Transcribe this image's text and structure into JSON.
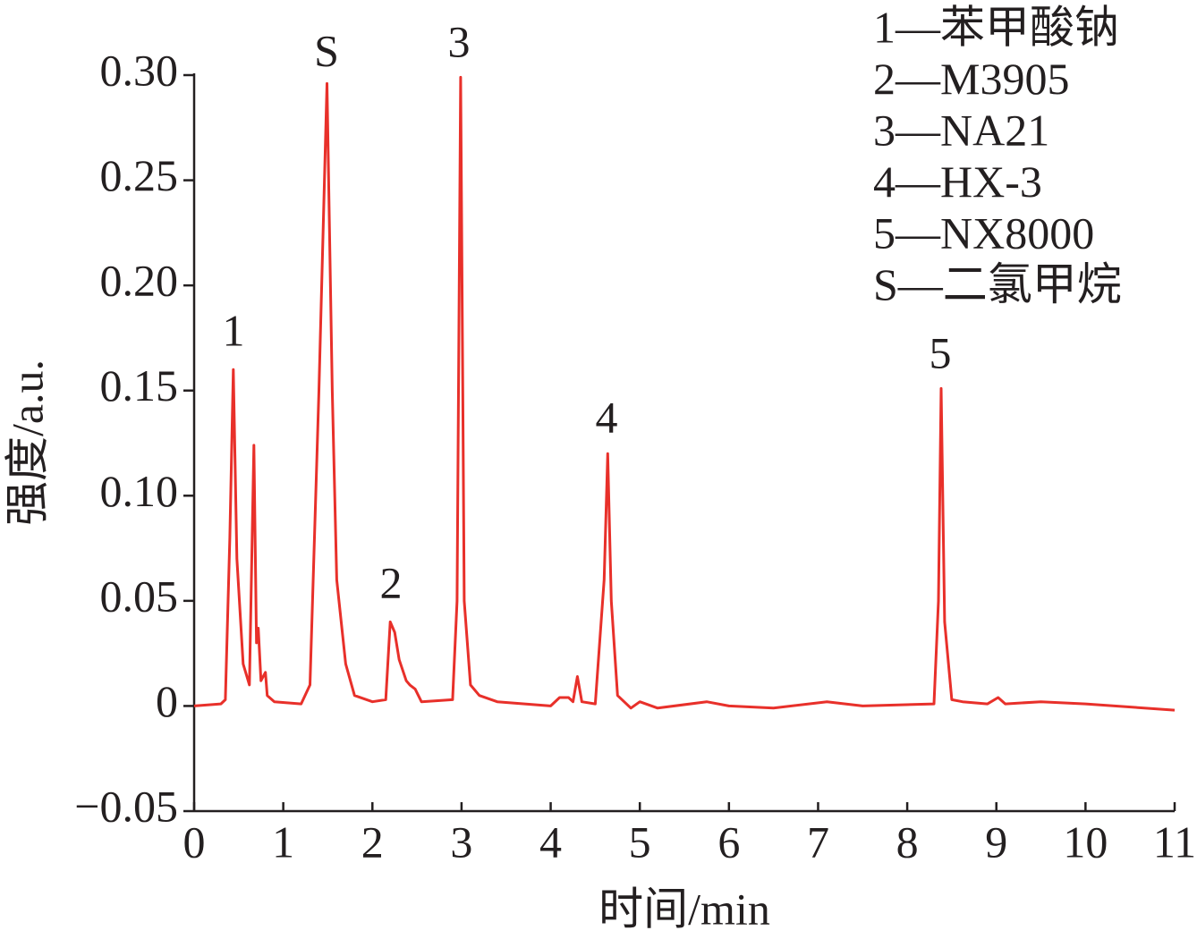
{
  "chart_data": {
    "type": "line",
    "xlabel": "时间/min",
    "ylabel": "强度/a.u.",
    "x": [
      0,
      0.3,
      0.35,
      0.4,
      0.44,
      0.48,
      0.55,
      0.62,
      0.67,
      0.7,
      0.72,
      0.75,
      0.8,
      0.82,
      0.9,
      1.2,
      1.3,
      1.4,
      1.49,
      1.55,
      1.6,
      1.7,
      1.8,
      2.0,
      2.15,
      2.2,
      2.25,
      2.3,
      2.38,
      2.42,
      2.48,
      2.55,
      2.9,
      2.95,
      2.99,
      3.03,
      3.1,
      3.2,
      3.4,
      4.0,
      4.1,
      4.2,
      4.25,
      4.3,
      4.35,
      4.5,
      4.6,
      4.64,
      4.68,
      4.75,
      4.9,
      5.0,
      5.2,
      5.75,
      6.0,
      6.5,
      7.1,
      7.5,
      8.3,
      8.35,
      8.38,
      8.42,
      8.5,
      8.62,
      8.9,
      9.02,
      9.1,
      9.5,
      10.0,
      11.0
    ],
    "values": [
      0,
      0.001,
      0.003,
      0.08,
      0.16,
      0.07,
      0.02,
      0.01,
      0.124,
      0.03,
      0.037,
      0.012,
      0.016,
      0.005,
      0.002,
      0.001,
      0.01,
      0.15,
      0.296,
      0.15,
      0.06,
      0.02,
      0.005,
      0.002,
      0.003,
      0.04,
      0.035,
      0.022,
      0.012,
      0.01,
      0.008,
      0.002,
      0.003,
      0.05,
      0.299,
      0.05,
      0.01,
      0.005,
      0.002,
      0,
      0.004,
      0.004,
      0.002,
      0.014,
      0.002,
      0.001,
      0.06,
      0.12,
      0.05,
      0.005,
      -0.001,
      0.002,
      -0.001,
      0.002,
      0,
      -0.001,
      0.002,
      0,
      0.001,
      0.05,
      0.151,
      0.04,
      0.003,
      0.002,
      0.001,
      0.004,
      0.001,
      0.002,
      0.001,
      -0.002
    ],
    "color": "#e8302a",
    "xlim": [
      0,
      11
    ],
    "xticks": [
      0,
      1,
      2,
      3,
      4,
      5,
      6,
      7,
      8,
      9,
      10,
      11
    ],
    "ylim": [
      -0.05,
      0.3
    ],
    "yticks": [
      {
        "value": -0.05,
        "label": "−0.05"
      },
      0,
      0.05,
      {
        "value": 0.1,
        "label": "0.10"
      },
      0.15,
      {
        "value": 0.2,
        "label": "0.20"
      },
      0.25,
      {
        "value": 0.3,
        "label": "0.30"
      }
    ],
    "annotations": [
      "1",
      "S",
      "2",
      "3",
      "4",
      "5"
    ],
    "key": [
      "1—苯甲酸钠",
      "2—M3905",
      "3—NA21",
      "4—HX-3",
      "5—NX8000",
      "S—二氯甲烷"
    ]
  }
}
